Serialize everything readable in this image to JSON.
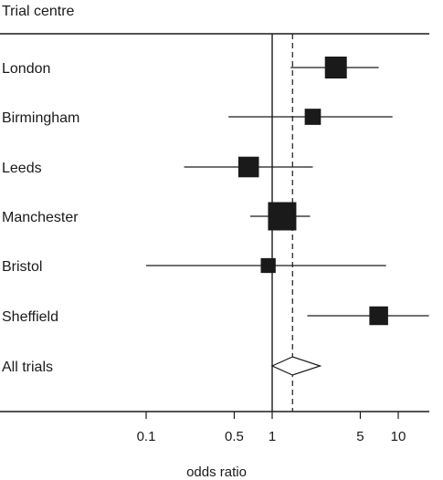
{
  "chart_data": {
    "type": "forest",
    "column_header": "Trial centre",
    "xlabel": "odds ratio",
    "x_scale": "log",
    "xlim": [
      0.015,
      18
    ],
    "x_ticks": [
      0.1,
      0.5,
      1,
      5,
      10
    ],
    "x_tick_labels": [
      "0.1",
      "0.5",
      "1",
      "5",
      "10"
    ],
    "null_line": 1,
    "pooled_reference_line": 1.45,
    "studies": [
      {
        "label": "London",
        "or": 3.2,
        "ci": [
          1.4,
          7.0
        ],
        "weight": 1.0
      },
      {
        "label": "Birmingham",
        "or": 2.1,
        "ci": [
          0.45,
          9.0
        ],
        "weight": 0.55
      },
      {
        "label": "Leeds",
        "or": 0.65,
        "ci": [
          0.2,
          2.1
        ],
        "weight": 0.9
      },
      {
        "label": "Manchester",
        "or": 1.2,
        "ci": [
          0.67,
          2.0
        ],
        "weight": 1.5
      },
      {
        "label": "Bristol",
        "or": 0.93,
        "ci": [
          0.1,
          8.0
        ],
        "weight": 0.45
      },
      {
        "label": "Sheffield",
        "or": 7.0,
        "ci": [
          1.9,
          17.5
        ],
        "weight": 0.75
      }
    ],
    "pooled": {
      "label": "All trials",
      "or": 1.45,
      "ci": [
        1.0,
        2.4
      ]
    }
  }
}
